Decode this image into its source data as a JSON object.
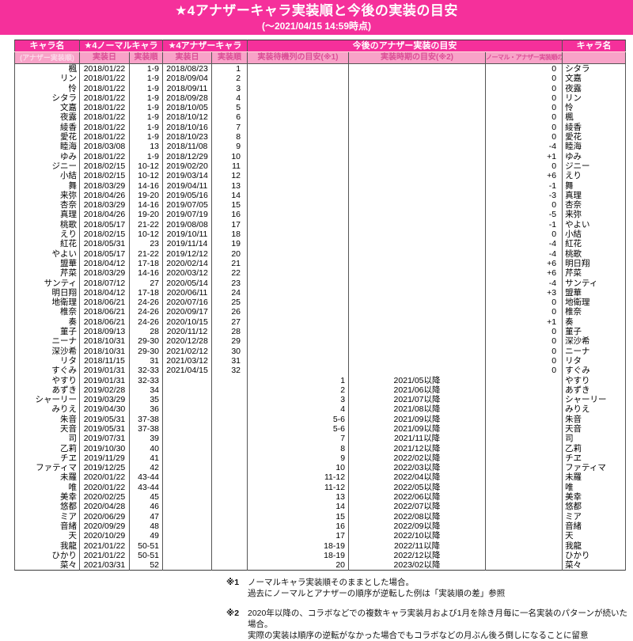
{
  "header": {
    "title": "★4アナザーキャラ実装順と今後の実装の目安",
    "subtitle": "(～2021/04/15 14:59時点)"
  },
  "colors": {
    "magenta": "#F5309B",
    "light_pink": "#F8A3C8",
    "subheader_text": "#DB4D96",
    "subheader_text_light": "#FBD9E9"
  },
  "table": {
    "group_headers": [
      "キャラ名",
      "★4ノーマルキャラ",
      "★4アナザーキャラ",
      "今後のアナザー実装の目安",
      "キャラ名"
    ],
    "sub_headers": [
      "(アナザー実装順)",
      "実装日",
      "実装順",
      "実装日",
      "実装順",
      "実装待機列の目安(※1)",
      "実装時期の目安(※2)",
      "ノーマル・アナザー実装順の差",
      ""
    ],
    "rows": [
      [
        "楓",
        "2018/01/22",
        "1-9",
        "2018/08/23",
        "1",
        "",
        "",
        "0",
        "シタラ"
      ],
      [
        "リン",
        "2018/01/22",
        "1-9",
        "2018/09/04",
        "2",
        "",
        "",
        "0",
        "文嘉"
      ],
      [
        "怜",
        "2018/01/22",
        "1-9",
        "2018/09/11",
        "3",
        "",
        "",
        "0",
        "夜露"
      ],
      [
        "シタラ",
        "2018/01/22",
        "1-9",
        "2018/09/28",
        "4",
        "",
        "",
        "0",
        "リン"
      ],
      [
        "文嘉",
        "2018/01/22",
        "1-9",
        "2018/10/05",
        "5",
        "",
        "",
        "0",
        "怜"
      ],
      [
        "夜露",
        "2018/01/22",
        "1-9",
        "2018/10/12",
        "6",
        "",
        "",
        "0",
        "楓"
      ],
      [
        "綾香",
        "2018/01/22",
        "1-9",
        "2018/10/16",
        "7",
        "",
        "",
        "0",
        "綾香"
      ],
      [
        "愛花",
        "2018/01/22",
        "1-9",
        "2018/10/23",
        "8",
        "",
        "",
        "0",
        "愛花"
      ],
      [
        "睦海",
        "2018/03/08",
        "13",
        "2018/11/08",
        "9",
        "",
        "",
        "-4",
        "睦海"
      ],
      [
        "ゆみ",
        "2018/01/22",
        "1-9",
        "2018/12/29",
        "10",
        "",
        "",
        "+1",
        "ゆみ"
      ],
      [
        "ジニー",
        "2018/02/15",
        "10-12",
        "2019/02/20",
        "11",
        "",
        "",
        "0",
        "ジニー"
      ],
      [
        "小結",
        "2018/02/15",
        "10-12",
        "2019/03/14",
        "12",
        "",
        "",
        "+6",
        "えり"
      ],
      [
        "舞",
        "2018/03/29",
        "14-16",
        "2019/04/11",
        "13",
        "",
        "",
        "-1",
        "舞"
      ],
      [
        "来弥",
        "2018/04/26",
        "19-20",
        "2019/05/16",
        "14",
        "",
        "",
        "-3",
        "真理"
      ],
      [
        "杏奈",
        "2018/03/29",
        "14-16",
        "2019/07/05",
        "15",
        "",
        "",
        "0",
        "杏奈"
      ],
      [
        "真理",
        "2018/04/26",
        "19-20",
        "2019/07/19",
        "16",
        "",
        "",
        "-5",
        "来弥"
      ],
      [
        "桃歌",
        "2018/05/17",
        "21-22",
        "2019/08/08",
        "17",
        "",
        "",
        "-1",
        "やよい"
      ],
      [
        "えり",
        "2018/02/15",
        "10-12",
        "2019/10/11",
        "18",
        "",
        "",
        "0",
        "小結"
      ],
      [
        "紅花",
        "2018/05/31",
        "23",
        "2019/11/14",
        "19",
        "",
        "",
        "-4",
        "紅花"
      ],
      [
        "やよい",
        "2018/05/17",
        "21-22",
        "2019/12/12",
        "20",
        "",
        "",
        "-4",
        "桃歌"
      ],
      [
        "盟華",
        "2018/04/12",
        "17-18",
        "2020/02/14",
        "21",
        "",
        "",
        "+6",
        "明日翔"
      ],
      [
        "芹菜",
        "2018/03/29",
        "14-16",
        "2020/03/12",
        "22",
        "",
        "",
        "+6",
        "芹菜"
      ],
      [
        "サンティ",
        "2018/07/12",
        "27",
        "2020/05/14",
        "23",
        "",
        "",
        "-4",
        "サンティ"
      ],
      [
        "明日翔",
        "2018/04/12",
        "17-18",
        "2020/06/11",
        "24",
        "",
        "",
        "+3",
        "盟華"
      ],
      [
        "地衛理",
        "2018/06/21",
        "24-26",
        "2020/07/16",
        "25",
        "",
        "",
        "0",
        "地衛理"
      ],
      [
        "椎奈",
        "2018/06/21",
        "24-26",
        "2020/09/17",
        "26",
        "",
        "",
        "0",
        "椎奈"
      ],
      [
        "奏",
        "2018/06/21",
        "24-26",
        "2020/10/15",
        "27",
        "",
        "",
        "+1",
        "奏"
      ],
      [
        "菫子",
        "2018/09/13",
        "28",
        "2020/11/12",
        "28",
        "",
        "",
        "0",
        "菫子"
      ],
      [
        "ニーナ",
        "2018/10/31",
        "29-30",
        "2020/12/28",
        "29",
        "",
        "",
        "0",
        "深沙希"
      ],
      [
        "深沙希",
        "2018/10/31",
        "29-30",
        "2021/02/12",
        "30",
        "",
        "",
        "0",
        "ニーナ"
      ],
      [
        "リタ",
        "2018/11/15",
        "31",
        "2021/03/12",
        "31",
        "",
        "",
        "0",
        "リタ"
      ],
      [
        "すぐみ",
        "2019/01/31",
        "32-33",
        "2021/04/15",
        "32",
        "",
        "",
        "0",
        "すぐみ"
      ],
      [
        "やすり",
        "2019/01/31",
        "32-33",
        "",
        "",
        "1",
        "2021/05以降",
        "",
        "やすり"
      ],
      [
        "あずき",
        "2019/02/28",
        "34",
        "",
        "",
        "2",
        "2021/06以降",
        "",
        "あずき"
      ],
      [
        "シャーリー",
        "2019/03/29",
        "35",
        "",
        "",
        "3",
        "2021/07以降",
        "",
        "シャーリー"
      ],
      [
        "みりえ",
        "2019/04/30",
        "36",
        "",
        "",
        "4",
        "2021/08以降",
        "",
        "みりえ"
      ],
      [
        "朱音",
        "2019/05/31",
        "37-38",
        "",
        "",
        "5-6",
        "2021/09以降",
        "",
        "朱音"
      ],
      [
        "天音",
        "2019/05/31",
        "37-38",
        "",
        "",
        "5-6",
        "2021/09以降",
        "",
        "天音"
      ],
      [
        "司",
        "2019/07/31",
        "39",
        "",
        "",
        "7",
        "2021/11以降",
        "",
        "司"
      ],
      [
        "乙莉",
        "2019/10/30",
        "40",
        "",
        "",
        "8",
        "2021/12以降",
        "",
        "乙莉"
      ],
      [
        "チヱ",
        "2019/11/29",
        "41",
        "",
        "",
        "9",
        "2022/02以降",
        "",
        "チヱ"
      ],
      [
        "ファティマ",
        "2019/12/25",
        "42",
        "",
        "",
        "10",
        "2022/03以降",
        "",
        "ファティマ"
      ],
      [
        "未羅",
        "2020/01/22",
        "43-44",
        "",
        "",
        "11-12",
        "2022/04以降",
        "",
        "未羅"
      ],
      [
        "唯",
        "2020/01/22",
        "43-44",
        "",
        "",
        "11-12",
        "2022/05以降",
        "",
        "唯"
      ],
      [
        "美幸",
        "2020/02/25",
        "45",
        "",
        "",
        "13",
        "2022/06以降",
        "",
        "美幸"
      ],
      [
        "悠都",
        "2020/04/28",
        "46",
        "",
        "",
        "14",
        "2022/07以降",
        "",
        "悠都"
      ],
      [
        "ミア",
        "2020/06/29",
        "47",
        "",
        "",
        "15",
        "2022/08以降",
        "",
        "ミア"
      ],
      [
        "音緒",
        "2020/09/29",
        "48",
        "",
        "",
        "16",
        "2022/09以降",
        "",
        "音緒"
      ],
      [
        "天",
        "2020/10/29",
        "49",
        "",
        "",
        "17",
        "2022/10以降",
        "",
        "天"
      ],
      [
        "我龍",
        "2021/01/22",
        "50-51",
        "",
        "",
        "18-19",
        "2022/11以降",
        "",
        "我龍"
      ],
      [
        "ひかり",
        "2021/01/22",
        "50-51",
        "",
        "",
        "18-19",
        "2022/12以降",
        "",
        "ひかり"
      ],
      [
        "菜々",
        "2021/03/31",
        "52",
        "",
        "",
        "20",
        "2023/02以降",
        "",
        "菜々"
      ]
    ]
  },
  "notes": [
    {
      "marker": "※1",
      "lines": [
        "ノーマルキャラ実装順そのままとした場合。",
        "過去にノーマルとアナザーの順序が逆転した例は「実装順の差」参照"
      ]
    },
    {
      "marker": "※2",
      "lines": [
        "2020年以降の、コラボなどでの複数キャラ実装月および1月を除き月毎に一名実装のパターンが続いた場合。",
        "実際の実装は順序の逆転がなかった場合でもコラボなどの月ぶん後ろ倒しになることに留意"
      ]
    }
  ]
}
